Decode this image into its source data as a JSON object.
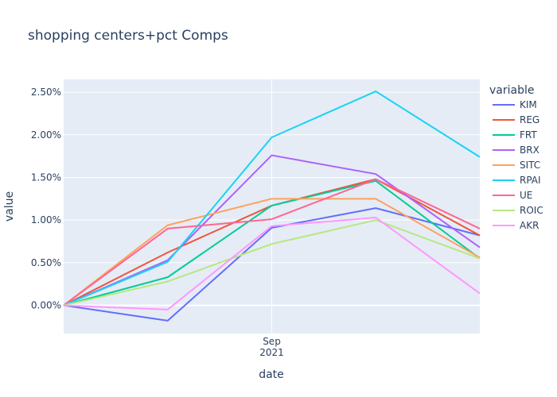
{
  "chart_data": {
    "type": "line",
    "title": "shopping centers+pct Comps",
    "xlabel": "date",
    "ylabel": "value",
    "x_tick_labels": [
      {
        "label": "Sep",
        "sublabel": "2021",
        "at": 2
      }
    ],
    "x_points": [
      0,
      1,
      2,
      3,
      4
    ],
    "y_ticks": [
      0,
      0.5,
      1.0,
      1.5,
      2.0,
      2.5
    ],
    "y_tick_labels": [
      "0.00%",
      "0.50%",
      "1.00%",
      "1.50%",
      "2.00%",
      "2.50%"
    ],
    "ylim": [
      -0.33,
      2.65
    ],
    "legend_title": "variable",
    "legend_position": "right",
    "series": [
      {
        "name": "KIM",
        "color": "#636efa",
        "values": [
          0,
          -0.18,
          0.91,
          1.14,
          0.82
        ]
      },
      {
        "name": "REG",
        "color": "#EF553B",
        "values": [
          0,
          0.62,
          1.17,
          1.48,
          0.82
        ]
      },
      {
        "name": "FRT",
        "color": "#00cc96",
        "values": [
          0,
          0.33,
          1.17,
          1.46,
          0.55
        ]
      },
      {
        "name": "BRX",
        "color": "#ab63fa",
        "values": [
          0,
          0.53,
          1.76,
          1.54,
          0.68
        ]
      },
      {
        "name": "SITC",
        "color": "#FFA15A",
        "values": [
          0,
          0.94,
          1.25,
          1.25,
          0.56
        ]
      },
      {
        "name": "RPAI",
        "color": "#19d3f3",
        "values": [
          0,
          0.51,
          1.97,
          2.51,
          1.74
        ]
      },
      {
        "name": "UE",
        "color": "#FF6692",
        "values": [
          0,
          0.9,
          1.01,
          1.48,
          0.9
        ]
      },
      {
        "name": "ROIC",
        "color": "#B6E880",
        "values": [
          0,
          0.28,
          0.72,
          1.0,
          0.55
        ]
      },
      {
        "name": "AKR",
        "color": "#FF97FF",
        "values": [
          0,
          -0.05,
          0.93,
          1.03,
          0.14
        ]
      }
    ]
  }
}
